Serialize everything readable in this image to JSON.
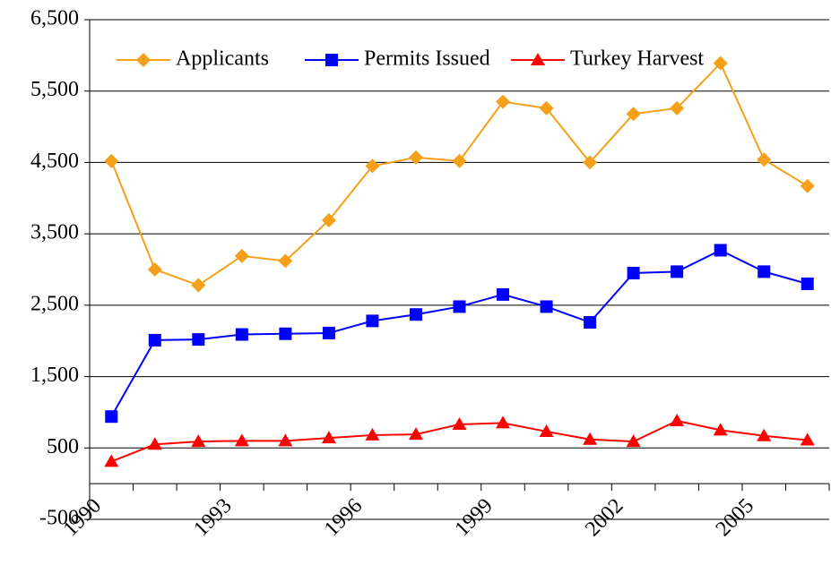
{
  "chart_data": {
    "type": "line",
    "categories": [
      "1990",
      null,
      null,
      "1993",
      null,
      null,
      "1996",
      null,
      null,
      "1999",
      null,
      null,
      "2002",
      null,
      null,
      "2005",
      null
    ],
    "series": [
      {
        "name": "Applicants",
        "color": "#f5a01a",
        "marker": "diamond",
        "values": [
          4520,
          3000,
          2780,
          3190,
          3120,
          3690,
          4450,
          4570,
          4520,
          5350,
          5260,
          4500,
          5180,
          5260,
          5890,
          4540,
          4170
        ]
      },
      {
        "name": "Permits Issued",
        "color": "#0000ff",
        "marker": "square",
        "values": [
          940,
          2010,
          2020,
          2090,
          2100,
          2110,
          2280,
          2370,
          2480,
          2650,
          2480,
          2260,
          2950,
          2970,
          3270,
          2970,
          2800
        ]
      },
      {
        "name": "Turkey Harvest",
        "color": "#ff0000",
        "marker": "triangle",
        "values": [
          310,
          550,
          590,
          600,
          600,
          640,
          680,
          690,
          830,
          850,
          730,
          620,
          590,
          880,
          750,
          670,
          610
        ]
      }
    ],
    "ylim": [
      -500,
      6500
    ],
    "yticks": [
      -500,
      500,
      {
        "value": 1500,
        "label": "1,500"
      },
      {
        "value": 2500,
        "label": "2,500"
      },
      {
        "value": 3500,
        "label": "3,500"
      },
      {
        "value": 4500,
        "label": "4,500"
      },
      {
        "value": 5500,
        "label": "5,500"
      },
      {
        "value": 6500,
        "label": "6,500"
      }
    ],
    "grid": true,
    "legend": "top"
  }
}
